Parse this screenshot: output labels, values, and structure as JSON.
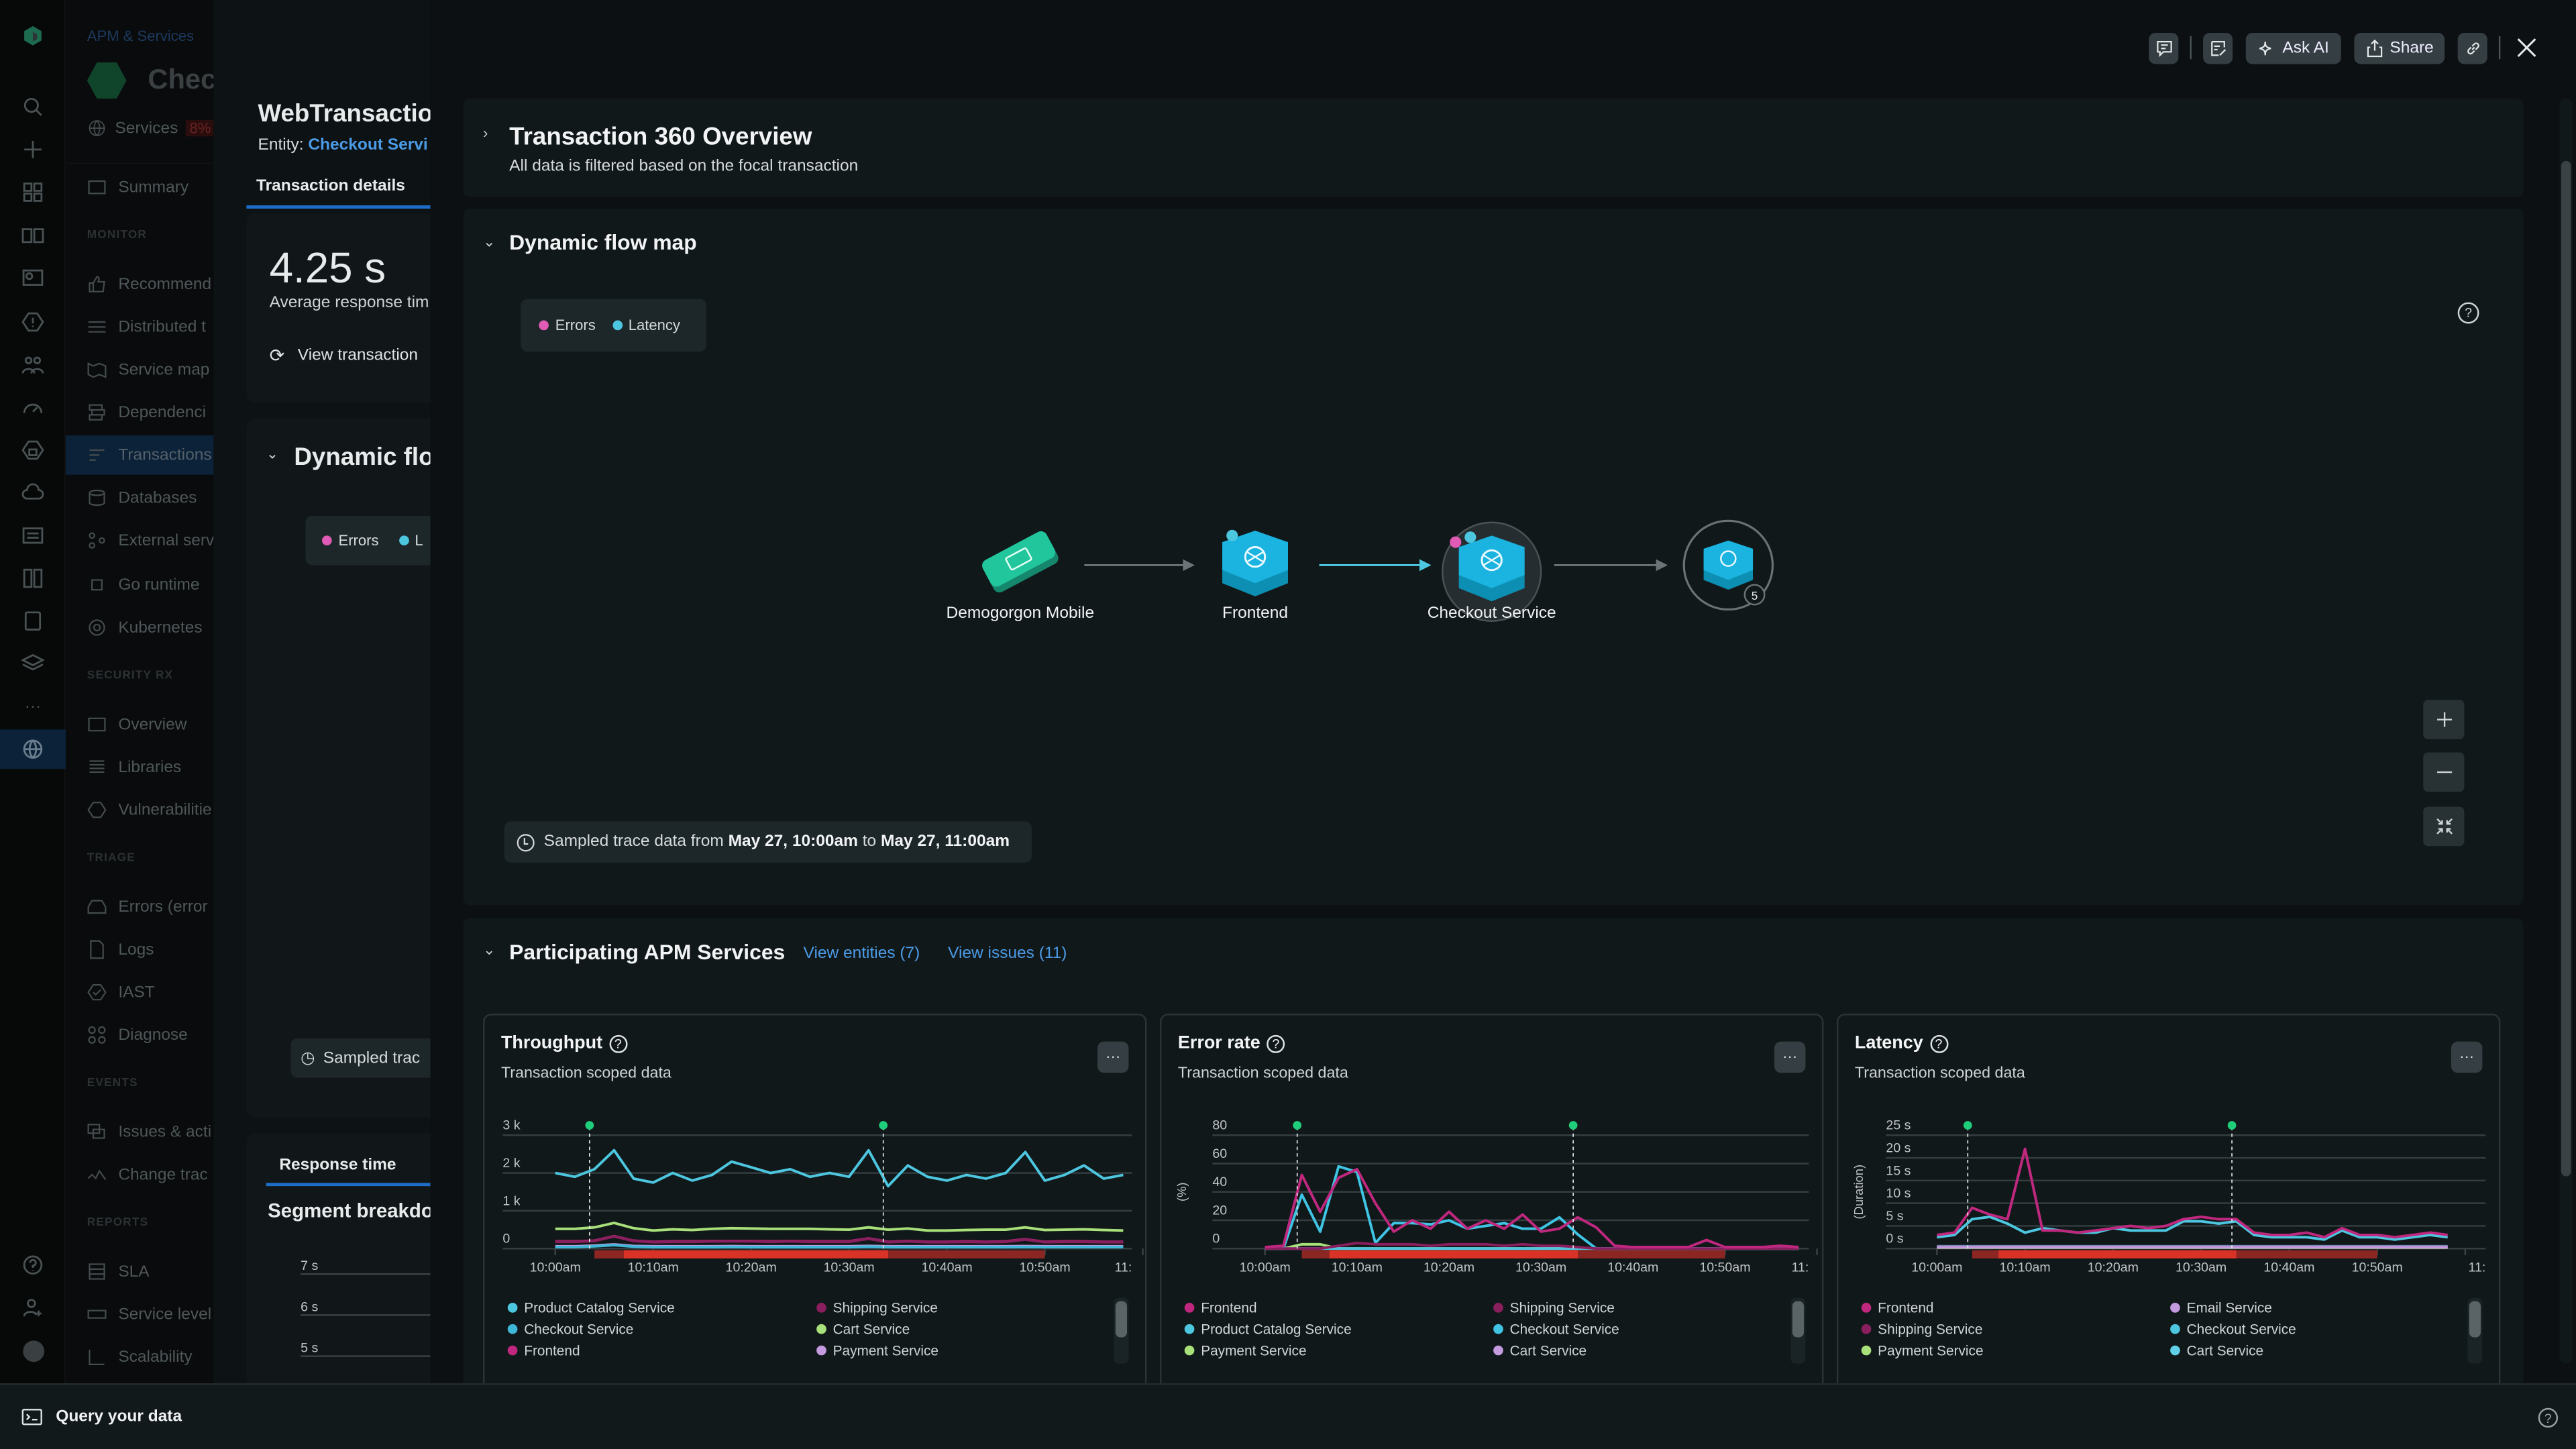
{
  "rail": {
    "icons": [
      "logo",
      "search",
      "add",
      "apps",
      "catalog",
      "dashboards",
      "alerts",
      "teams",
      "performance",
      "security",
      "cost",
      "settings",
      "compare",
      "mobile",
      "layers",
      "more",
      "apm-services",
      "help",
      "add-user",
      "avatar"
    ]
  },
  "nav": {
    "breadcrumb": "APM & Services",
    "entity_title": "Chec",
    "services_label": "Services",
    "services_badge": "8%",
    "summary": "Summary",
    "sections": {
      "monitor": "MONITOR",
      "security": "SECURITY RX",
      "triage": "TRIAGE",
      "events": "EVENTS",
      "reports": "REPORTS"
    },
    "items": {
      "recommendations": "Recommend",
      "distributed": "Distributed t",
      "service_map": "Service map",
      "dependencies": "Dependenci",
      "transactions": "Transactions",
      "databases": "Databases",
      "external": "External serv",
      "go_runtime": "Go runtime",
      "kubernetes": "Kubernetes",
      "overview": "Overview",
      "libraries": "Libraries",
      "vulnerabilities": "Vulnerabilitie",
      "errors": "Errors (error",
      "logs": "Logs",
      "iast": "IAST",
      "diagnose": "Diagnose",
      "issues": "Issues & acti",
      "change": "Change trac",
      "sla": "SLA",
      "service_levels": "Service level",
      "scalability": "Scalability"
    }
  },
  "detail": {
    "title": "WebTransactio",
    "entity_prefix": "Entity:",
    "entity_link": "Checkout Servi",
    "tab": "Transaction details",
    "avg_value": "4.25 s",
    "avg_label": "Average response tim",
    "view_transaction": "View transaction",
    "flow_title": "Dynamic flo",
    "legend_errors": "Errors",
    "legend_latency": "L",
    "sampled": "Sampled trac",
    "response_tab": "Response time",
    "segment_title": "Segment breakdo",
    "axis": [
      "7 s",
      "6 s",
      "5 s"
    ]
  },
  "toolbar": {
    "ask_ai": "Ask AI",
    "share": "Share"
  },
  "overview": {
    "title": "Transaction 360 Overview",
    "subtitle": "All data is filtered based on the focal transaction"
  },
  "flowmap": {
    "title": "Dynamic flow map",
    "legend": [
      {
        "label": "Errors",
        "color": "#e05bb5"
      },
      {
        "label": "Latency",
        "color": "#4dc7e0"
      }
    ],
    "nodes": [
      {
        "label": "Demogorgon Mobile"
      },
      {
        "label": "Frontend"
      },
      {
        "label": "Checkout Service"
      },
      {
        "label": "",
        "group_count": "5"
      }
    ],
    "sampled_prefix": "Sampled trace data from",
    "sampled_from": "May 27, 10:00am",
    "sampled_to_word": "to",
    "sampled_to": "May 27, 11:00am"
  },
  "participating": {
    "title": "Participating APM Services",
    "view_entities": "View entities (7)",
    "view_issues": "View issues (11)"
  },
  "bottom": {
    "query": "Query your data"
  },
  "chart_data": [
    {
      "type": "line",
      "title": "Throughput",
      "subtitle": "Transaction scoped data",
      "ylabel": "",
      "ylim": [
        0,
        3000
      ],
      "yticks": [
        {
          "v": 0,
          "label": "0"
        },
        {
          "v": 1000,
          "label": "1 k"
        },
        {
          "v": 2000,
          "label": "2 k"
        },
        {
          "v": 3000,
          "label": "3 k"
        }
      ],
      "xticks": [
        {
          "v": 0,
          "label": "10:00am"
        },
        {
          "v": 10,
          "label": "10:10am"
        },
        {
          "v": 20,
          "label": "10:20am"
        },
        {
          "v": 30,
          "label": "10:30am"
        },
        {
          "v": 40,
          "label": "10:40am"
        },
        {
          "v": 50,
          "label": "10:50am"
        },
        {
          "v": 60,
          "label": "11:"
        }
      ],
      "x_minutes": [
        0,
        2,
        4,
        6,
        8,
        10,
        12,
        14,
        16,
        18,
        20,
        22,
        24,
        26,
        28,
        30,
        32,
        34,
        36,
        38,
        40,
        42,
        44,
        46,
        48,
        50,
        52,
        54,
        56,
        58
      ],
      "markers": [
        3.5,
        33.5
      ],
      "incident_window": [
        4,
        50
      ],
      "incident_peak": [
        7,
        34
      ],
      "series": [
        {
          "name": "Product Catalog Service",
          "color": "#4dc7e0",
          "values": [
            2000,
            1900,
            2100,
            2600,
            1850,
            1750,
            2000,
            1800,
            1950,
            2300,
            2150,
            2000,
            2100,
            1900,
            2000,
            1900,
            2600,
            1650,
            2200,
            1900,
            1800,
            1950,
            1850,
            2000,
            2550,
            1800,
            1950,
            2200,
            1850,
            1950
          ]
        },
        {
          "name": "Shipping Service",
          "color": "#8a1f5e",
          "values": [
            180,
            180,
            200,
            320,
            200,
            170,
            180,
            180,
            190,
            190,
            190,
            180,
            190,
            180,
            180,
            180,
            260,
            170,
            190,
            170,
            170,
            180,
            170,
            180,
            240,
            170,
            180,
            180,
            170,
            170
          ]
        },
        {
          "name": "Checkout Service",
          "color": "#3fb8d8",
          "values": [
            40,
            40,
            60,
            90,
            50,
            40,
            40,
            40,
            40,
            45,
            40,
            40,
            40,
            40,
            40,
            40,
            50,
            40,
            40,
            40,
            40,
            40,
            40,
            40,
            45,
            40,
            40,
            40,
            40,
            40
          ]
        },
        {
          "name": "Cart Service",
          "color": "#a8e07a",
          "values": [
            520,
            520,
            560,
            680,
            540,
            480,
            510,
            490,
            520,
            540,
            530,
            520,
            520,
            520,
            510,
            500,
            560,
            500,
            530,
            480,
            480,
            490,
            500,
            500,
            560,
            490,
            500,
            510,
            490,
            480
          ]
        },
        {
          "name": "Frontend",
          "color": "#c0287f",
          "values": [
            190,
            190,
            210,
            330,
            210,
            180,
            190,
            190,
            200,
            200,
            200,
            190,
            200,
            190,
            190,
            190,
            270,
            180,
            200,
            180,
            180,
            190,
            180,
            190,
            250,
            180,
            190,
            190,
            180,
            180
          ]
        },
        {
          "name": "Payment Service",
          "color": "#c59be0",
          "values": [
            60,
            60,
            80,
            110,
            70,
            60,
            60,
            60,
            60,
            65,
            60,
            60,
            60,
            60,
            60,
            60,
            70,
            60,
            60,
            60,
            60,
            60,
            60,
            60,
            65,
            60,
            60,
            60,
            60,
            60
          ]
        }
      ],
      "legend_placement": "bottom"
    },
    {
      "type": "line",
      "title": "Error rate",
      "subtitle": "Transaction scoped data",
      "ylabel": "(%)",
      "ylim": [
        0,
        80
      ],
      "yticks": [
        {
          "v": 0,
          "label": "0"
        },
        {
          "v": 20,
          "label": "20"
        },
        {
          "v": 40,
          "label": "40"
        },
        {
          "v": 60,
          "label": "60"
        },
        {
          "v": 80,
          "label": "80"
        }
      ],
      "xticks": [
        {
          "v": 0,
          "label": "10:00am"
        },
        {
          "v": 10,
          "label": "10:10am"
        },
        {
          "v": 20,
          "label": "10:20am"
        },
        {
          "v": 30,
          "label": "10:30am"
        },
        {
          "v": 40,
          "label": "10:40am"
        },
        {
          "v": 50,
          "label": "10:50am"
        },
        {
          "v": 60,
          "label": "11:"
        }
      ],
      "x_minutes": [
        0,
        2,
        4,
        6,
        8,
        10,
        12,
        14,
        16,
        18,
        20,
        22,
        24,
        26,
        28,
        30,
        32,
        34,
        36,
        38,
        40,
        42,
        44,
        46,
        48,
        50,
        52,
        54,
        56,
        58
      ],
      "markers": [
        3.5,
        33.5
      ],
      "incident_window": [
        4,
        50
      ],
      "incident_peak": [
        7,
        34
      ],
      "series": [
        {
          "name": "Frontend",
          "color": "#c0287f",
          "values": [
            1,
            2,
            52,
            26,
            50,
            56,
            32,
            12,
            20,
            14,
            26,
            14,
            20,
            14,
            24,
            12,
            14,
            22,
            15,
            2,
            1,
            1,
            1,
            1,
            6,
            1,
            1,
            1,
            2,
            1
          ]
        },
        {
          "name": "Shipping Service",
          "color": "#8a1f5e",
          "values": [
            0,
            0,
            0,
            0,
            2,
            4,
            3,
            3,
            3,
            2,
            3,
            3,
            3,
            2,
            3,
            2,
            2,
            1,
            0,
            0,
            0,
            0,
            0,
            0,
            0,
            0,
            0,
            0,
            0,
            0
          ]
        },
        {
          "name": "Product Catalog Service",
          "color": "#4dc7e0",
          "values": [
            0,
            0,
            0,
            0,
            0,
            0,
            0,
            0,
            0,
            0,
            0,
            0,
            0,
            0,
            0,
            0,
            0,
            0,
            0,
            0,
            0,
            0,
            0,
            0,
            0,
            0,
            0,
            0,
            0,
            0
          ]
        },
        {
          "name": "Checkout Service",
          "color": "#3fc4e4",
          "values": [
            0,
            0,
            38,
            12,
            58,
            54,
            4,
            18,
            18,
            17,
            20,
            14,
            16,
            18,
            14,
            14,
            22,
            10,
            0,
            0,
            0,
            0,
            0,
            0,
            0,
            0,
            0,
            0,
            0,
            0
          ]
        },
        {
          "name": "Payment Service",
          "color": "#a8e07a",
          "values": [
            0,
            0,
            3,
            3,
            0,
            0,
            0,
            0,
            0,
            0,
            0,
            0,
            0,
            0,
            0,
            0,
            0,
            0,
            0,
            0,
            0,
            0,
            0,
            0,
            0,
            0,
            0,
            0,
            0,
            0
          ]
        },
        {
          "name": "Cart Service",
          "color": "#c59be0",
          "values": [
            0,
            0,
            0,
            0,
            0,
            0,
            0,
            0,
            0,
            0,
            0,
            0,
            0,
            0,
            0,
            0,
            0,
            0,
            0,
            0,
            0,
            0,
            0,
            0,
            0,
            0,
            0,
            0,
            0,
            0
          ]
        }
      ],
      "legend_placement": "bottom"
    },
    {
      "type": "line",
      "title": "Latency",
      "subtitle": "Transaction scoped data",
      "ylabel": "(Duration)",
      "ylim": [
        0,
        25
      ],
      "yticks": [
        {
          "v": 0,
          "label": "0 s"
        },
        {
          "v": 5,
          "label": "5 s"
        },
        {
          "v": 10,
          "label": "10 s"
        },
        {
          "v": 15,
          "label": "15 s"
        },
        {
          "v": 20,
          "label": "20 s"
        },
        {
          "v": 25,
          "label": "25 s"
        }
      ],
      "xticks": [
        {
          "v": 0,
          "label": "10:00am"
        },
        {
          "v": 10,
          "label": "10:10am"
        },
        {
          "v": 20,
          "label": "10:20am"
        },
        {
          "v": 30,
          "label": "10:30am"
        },
        {
          "v": 40,
          "label": "10:40am"
        },
        {
          "v": 50,
          "label": "10:50am"
        },
        {
          "v": 60,
          "label": "11:"
        }
      ],
      "x_minutes": [
        0,
        2,
        4,
        6,
        8,
        10,
        12,
        14,
        16,
        18,
        20,
        22,
        24,
        26,
        28,
        30,
        32,
        34,
        36,
        38,
        40,
        42,
        44,
        46,
        48,
        50,
        52,
        54,
        56,
        58
      ],
      "markers": [
        3.5,
        33.5
      ],
      "incident_window": [
        4,
        50
      ],
      "incident_peak": [
        7,
        34
      ],
      "series": [
        {
          "name": "Frontend",
          "color": "#c0287f",
          "values": [
            3,
            3.5,
            9,
            7.5,
            6.5,
            22,
            4,
            4,
            3.5,
            4,
            4.5,
            5,
            4.5,
            5,
            6.5,
            7,
            6.5,
            6.5,
            3.5,
            3,
            3,
            3.5,
            2.5,
            4.5,
            3,
            3,
            2.5,
            3,
            3.5,
            3
          ]
        },
        {
          "name": "Email Service",
          "color": "#c59be0",
          "values": [
            0.3,
            0.3,
            0.3,
            0.3,
            0.3,
            0.3,
            0.3,
            0.3,
            0.3,
            0.3,
            0.3,
            0.3,
            0.3,
            0.3,
            0.3,
            0.3,
            0.3,
            0.3,
            0.3,
            0.3,
            0.3,
            0.3,
            0.3,
            0.3,
            0.3,
            0.3,
            0.3,
            0.3,
            0.3,
            0.3
          ]
        },
        {
          "name": "Shipping Service",
          "color": "#8a1f5e",
          "values": [
            0.4,
            0.4,
            0.4,
            0.4,
            0.4,
            0.4,
            0.4,
            0.4,
            0.4,
            0.4,
            0.4,
            0.4,
            0.4,
            0.4,
            0.4,
            0.4,
            0.4,
            0.4,
            0.4,
            0.4,
            0.4,
            0.4,
            0.4,
            0.4,
            0.4,
            0.4,
            0.4,
            0.4,
            0.4,
            0.4
          ]
        },
        {
          "name": "Checkout Service",
          "color": "#4dc7e0",
          "values": [
            2.5,
            3,
            6.5,
            7,
            5.5,
            3.5,
            4.5,
            4,
            3.5,
            3.5,
            4.5,
            4,
            4,
            4,
            6,
            6,
            5.5,
            6,
            3,
            2.5,
            2.5,
            2.5,
            2,
            4,
            2.5,
            2.5,
            2,
            2.5,
            3,
            2.5
          ]
        },
        {
          "name": "Payment Service",
          "color": "#a8e07a",
          "values": [
            0.2,
            0.2,
            0.2,
            0.2,
            0.2,
            0.2,
            0.2,
            0.2,
            0.2,
            0.2,
            0.2,
            0.2,
            0.2,
            0.2,
            0.2,
            0.2,
            0.2,
            0.2,
            0.2,
            0.2,
            0.2,
            0.2,
            0.2,
            0.2,
            0.2,
            0.2,
            0.2,
            0.2,
            0.2,
            0.2
          ]
        },
        {
          "name": "Cart Service",
          "color": "#5fd0e8",
          "values": [
            0.5,
            0.5,
            0.5,
            0.5,
            0.5,
            0.5,
            0.5,
            0.5,
            0.5,
            0.5,
            0.5,
            0.5,
            0.5,
            0.5,
            0.5,
            0.5,
            0.5,
            0.5,
            0.5,
            0.5,
            0.5,
            0.5,
            0.5,
            0.5,
            0.5,
            0.5,
            0.5,
            0.5,
            0.5,
            0.5
          ]
        }
      ],
      "legend_placement": "bottom"
    }
  ]
}
